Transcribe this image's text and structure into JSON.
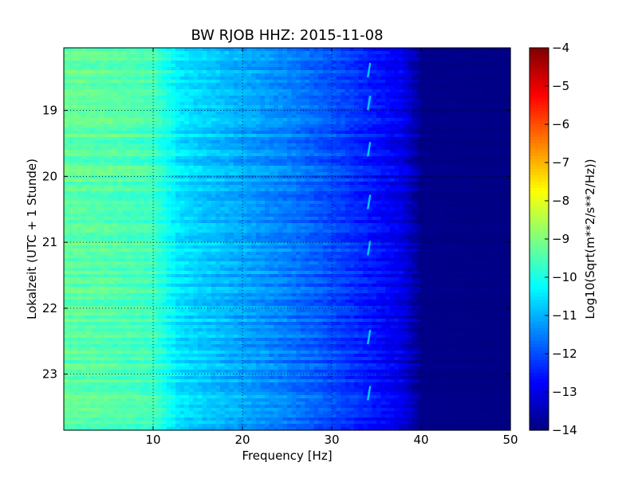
{
  "chart_data": {
    "type": "heatmap",
    "title": "BW RJOB HHZ: 2015-11-08",
    "xlabel": "Frequency [Hz]",
    "ylabel": "Lokalzeit (UTC + 1 Stunde)",
    "xlim": [
      0,
      50
    ],
    "ylim": [
      18.05,
      23.85
    ],
    "x_ticks": [
      10,
      20,
      30,
      40,
      50
    ],
    "y_ticks": [
      19,
      20,
      21,
      22,
      23
    ],
    "y_axis_inverted": true,
    "grid": true,
    "grid_style": "dotted",
    "colormap": "jet",
    "colorbar": {
      "label": "Log10(Sqrt(m**2/s**2/Hz))",
      "range": [
        -14,
        -4
      ],
      "ticks": [
        -4,
        -5,
        -6,
        -7,
        -8,
        -9,
        -10,
        -11,
        -12,
        -13,
        -14
      ]
    },
    "spectral_profile": {
      "frequency_hz": [
        0,
        5,
        10,
        13,
        15,
        20,
        25,
        30,
        35,
        38,
        40,
        50
      ],
      "value": [
        -9.3,
        -9.4,
        -9.6,
        -10.5,
        -10.7,
        -11.1,
        -11.5,
        -12.0,
        -12.6,
        -13.0,
        -13.9,
        -13.95
      ]
    },
    "tonal_line": {
      "frequency_hz": 34.3,
      "time_hours": [
        18.4,
        18.9,
        19.6,
        20.4,
        21.1,
        22.45,
        23.3
      ]
    }
  }
}
